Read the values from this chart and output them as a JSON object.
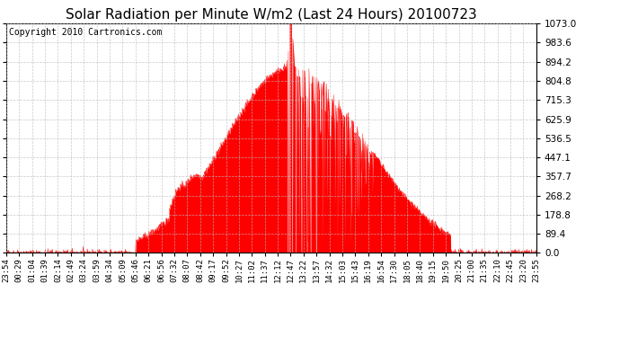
{
  "title": "Solar Radiation per Minute W/m2 (Last 24 Hours) 20100723",
  "copyright": "Copyright 2010 Cartronics.com",
  "ymax": 1073.0,
  "yticks": [
    0.0,
    89.4,
    178.8,
    268.2,
    357.7,
    447.1,
    536.5,
    625.9,
    715.3,
    804.8,
    894.2,
    983.6,
    1073.0
  ],
  "fill_color": "#FF0000",
  "line_color": "#FF0000",
  "dashed_line_color": "#FF0000",
  "grid_color": "#BBBBBB",
  "background_color": "#FFFFFF",
  "border_color": "#000000",
  "xtick_labels": [
    "23:54",
    "00:29",
    "01:04",
    "01:39",
    "02:14",
    "02:49",
    "03:24",
    "03:59",
    "04:34",
    "05:09",
    "05:46",
    "06:21",
    "06:56",
    "07:32",
    "08:07",
    "08:42",
    "09:17",
    "09:52",
    "10:27",
    "11:02",
    "11:37",
    "12:12",
    "12:47",
    "13:22",
    "13:57",
    "14:32",
    "15:03",
    "15:43",
    "16:19",
    "16:54",
    "17:30",
    "18:05",
    "18:40",
    "19:15",
    "19:50",
    "20:25",
    "21:00",
    "21:35",
    "22:10",
    "22:45",
    "23:20",
    "23:55"
  ],
  "num_points": 1440,
  "title_fontsize": 11,
  "copyright_fontsize": 7,
  "tick_fontsize": 6.5
}
